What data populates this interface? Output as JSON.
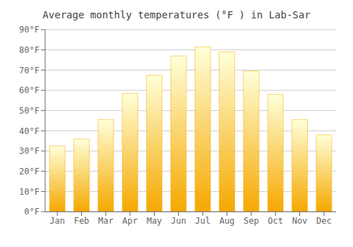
{
  "chart_data": {
    "type": "bar",
    "title": "Average monthly temperatures (°F ) in Lab-Sar",
    "categories": [
      "Jan",
      "Feb",
      "Mar",
      "Apr",
      "May",
      "Jun",
      "Jul",
      "Aug",
      "Sep",
      "Oct",
      "Nov",
      "Dec"
    ],
    "values": [
      32.5,
      36.0,
      45.5,
      58.5,
      67.5,
      77.0,
      81.5,
      79.0,
      69.5,
      58.0,
      45.5,
      38.0
    ],
    "color": "#F5A800",
    "ylim": [
      0,
      90
    ],
    "yticks": [
      {
        "value": 0,
        "label": "0°F"
      },
      {
        "value": 10,
        "label": "10°F"
      },
      {
        "value": 20,
        "label": "20°F"
      },
      {
        "value": 30,
        "label": "30°F"
      },
      {
        "value": 40,
        "label": "40°F"
      },
      {
        "value": 50,
        "label": "50°F"
      },
      {
        "value": 60,
        "label": "60°F"
      },
      {
        "value": 70,
        "label": "70°F"
      },
      {
        "value": 80,
        "label": "80°F"
      },
      {
        "value": 90,
        "label": "90°F"
      }
    ],
    "grid": true
  }
}
